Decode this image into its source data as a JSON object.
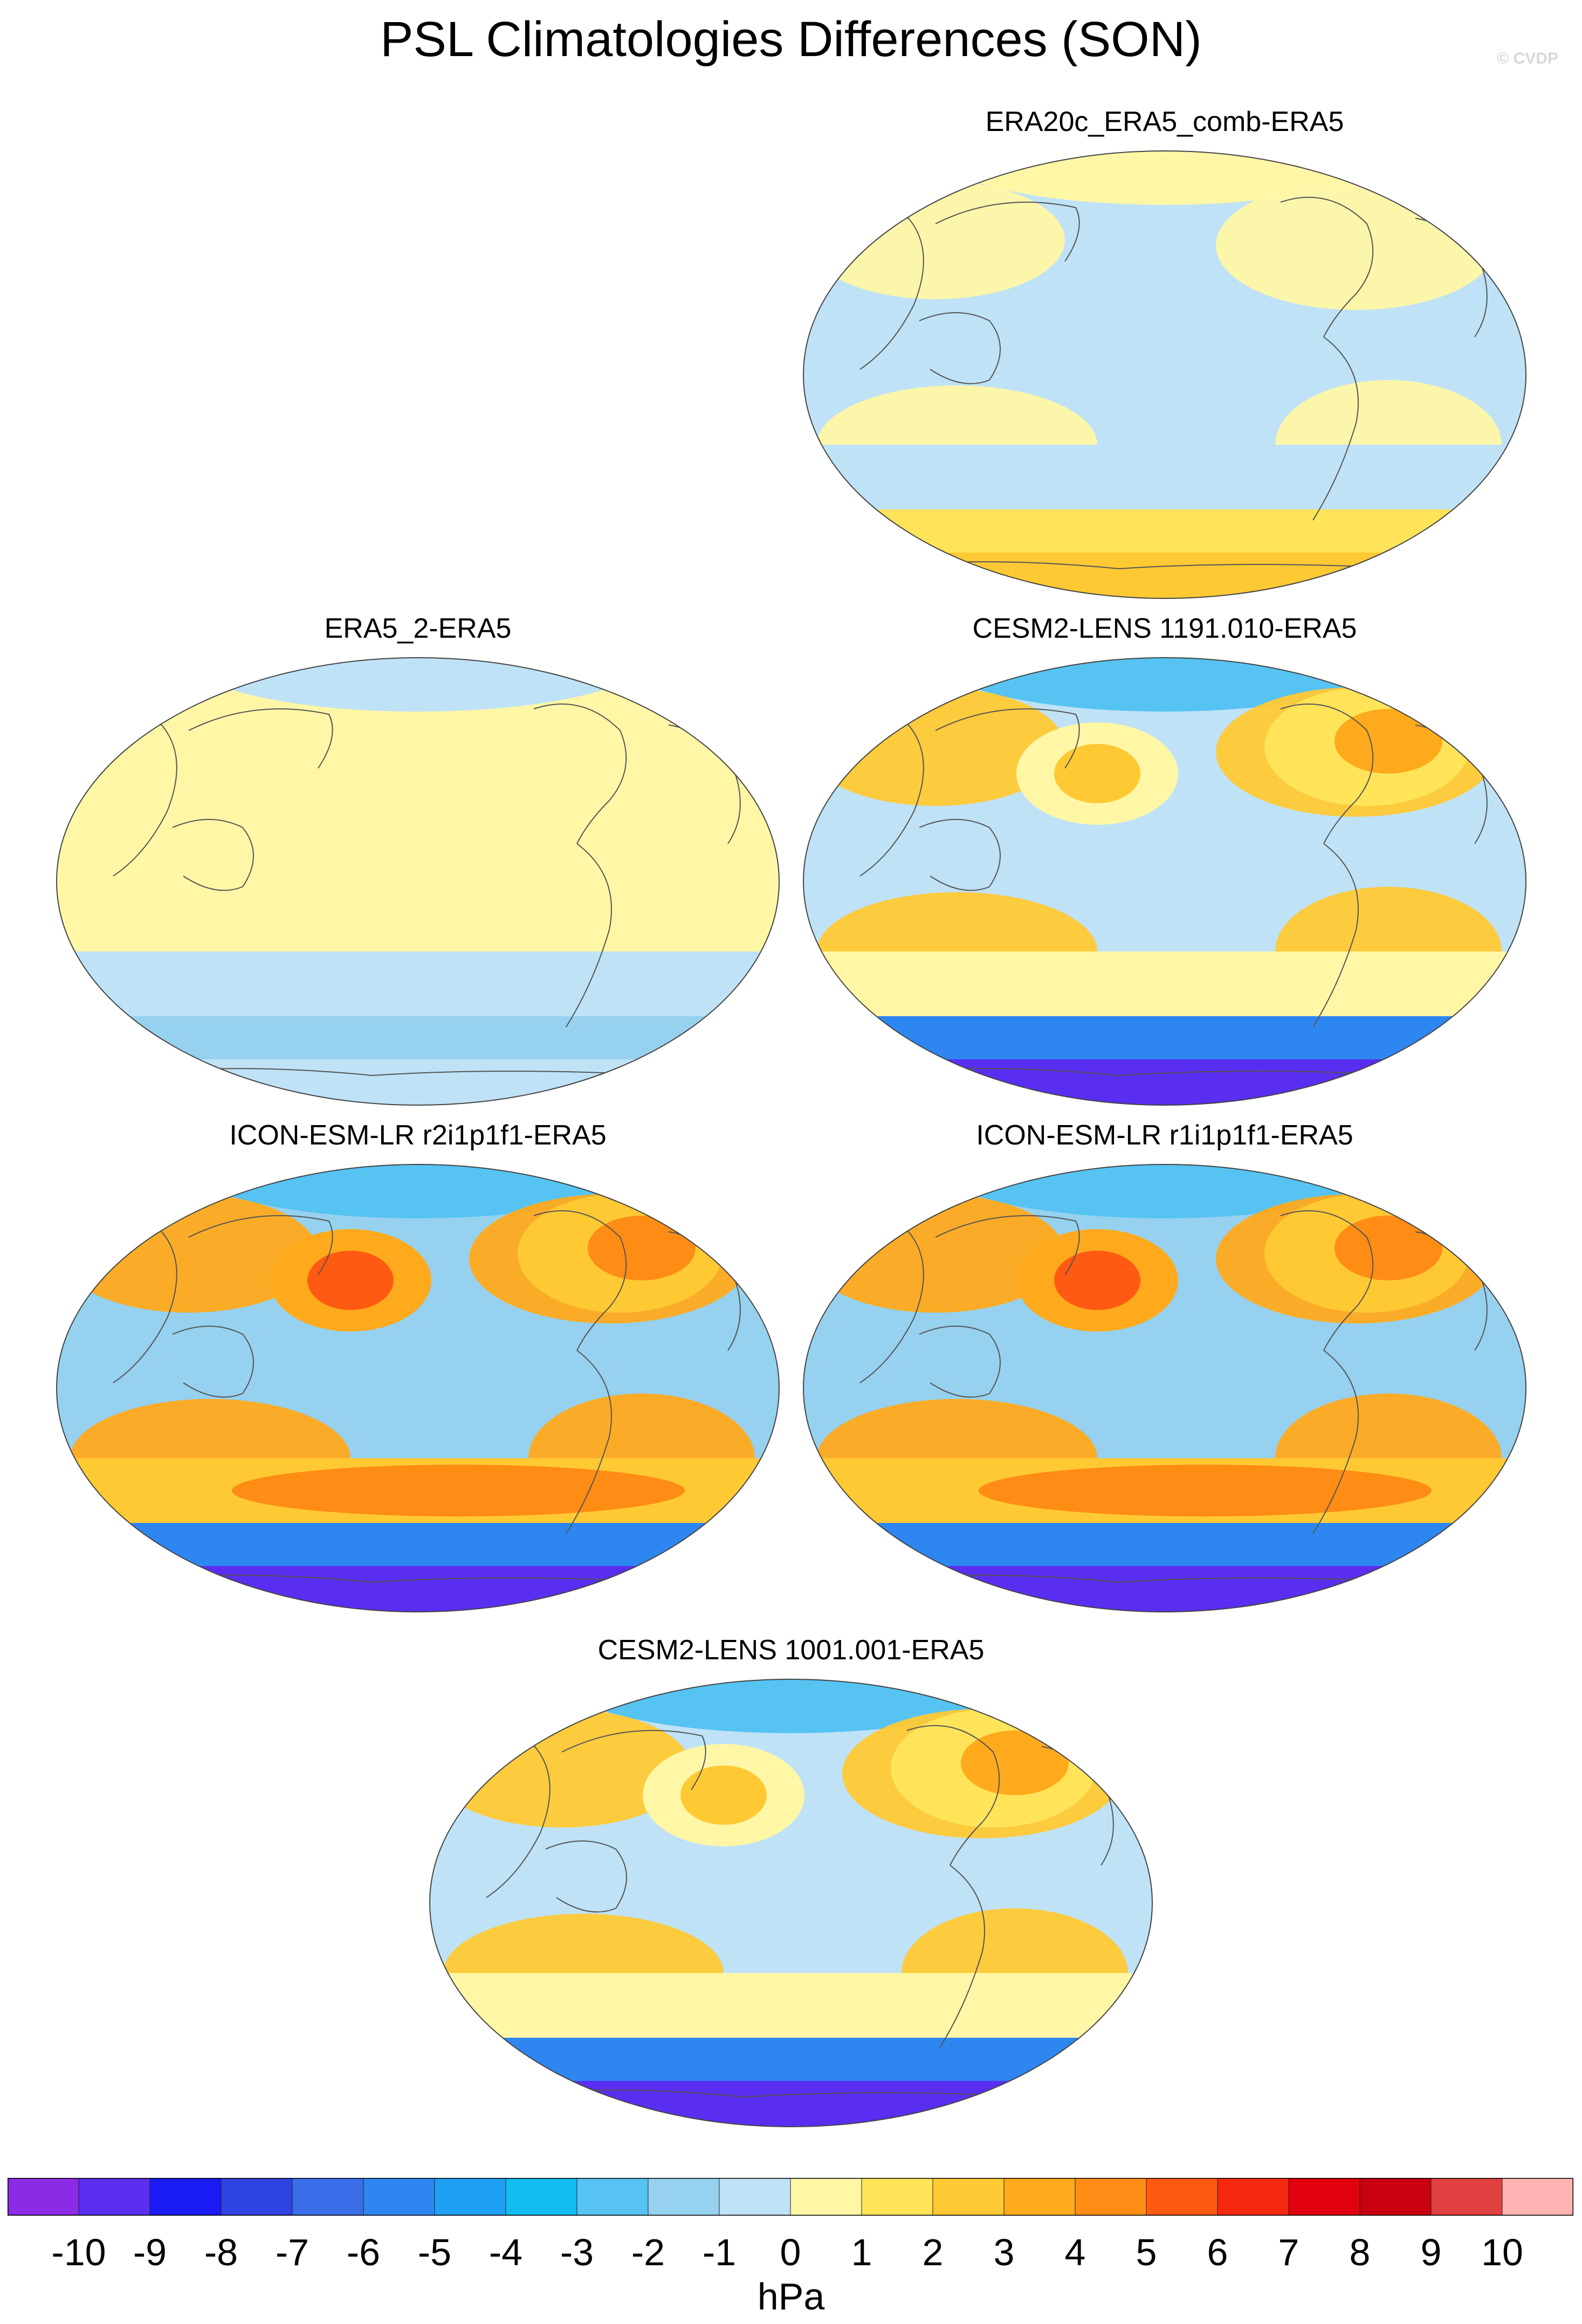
{
  "title": "PSL Climatologies Differences (SON)",
  "credit": "© CVDP",
  "panels": [
    {
      "id": "era20c",
      "label": "ERA20c_ERA5_comb-ERA5",
      "field": {
        "base": -0.5,
        "dipole": [],
        "subtropical_highs": 0.5,
        "midlat_low": -0.5,
        "southern_ring": 1.5,
        "antarctic": 2.5,
        "arctic": 0.5
      }
    },
    {
      "id": "era5_2",
      "label": "ERA5_2-ERA5",
      "field": {
        "base": 0.5,
        "dipole": [],
        "subtropical_highs": 0,
        "midlat_low": -0.5,
        "southern_ring": -1.5,
        "antarctic": -0.5,
        "arctic": -0.5
      }
    },
    {
      "id": "cesm_1191",
      "label": "CESM2-LENS 1191.010-ERA5",
      "field": {
        "base": -0.5,
        "dipole": [
          2.5,
          3.5
        ],
        "subtropical_highs": 2.5,
        "midlat_low": 0.5,
        "southern_ring": -6,
        "antarctic": -10,
        "arctic": -3
      }
    },
    {
      "id": "icon_r2",
      "label": "ICON-ESM-LR r2i1p1f1-ERA5",
      "field": {
        "base": -2,
        "dipole": [
          5.5,
          4.5
        ],
        "subtropical_highs": 3,
        "midlat_low": 4.5,
        "southern_ring": -6,
        "antarctic": -10,
        "arctic": -3
      }
    },
    {
      "id": "icon_r1",
      "label": "ICON-ESM-LR r1i1p1f1-ERA5",
      "field": {
        "base": -2,
        "dipole": [
          5.5,
          4.5
        ],
        "subtropical_highs": 3,
        "midlat_low": 4.5,
        "southern_ring": -6,
        "antarctic": -10,
        "arctic": -3
      }
    },
    {
      "id": "cesm_1001",
      "label": "CESM2-LENS 1001.001-ERA5",
      "field": {
        "base": -0.5,
        "dipole": [
          2.5,
          3.5
        ],
        "subtropical_highs": 2.5,
        "midlat_low": 0.5,
        "southern_ring": -6,
        "antarctic": -10,
        "arctic": -3
      }
    }
  ],
  "colorbar": {
    "units": "hPa",
    "labels": [
      "-10",
      "-9",
      "-8",
      "-7",
      "-6",
      "-5",
      "-4",
      "-3",
      "-2",
      "-1",
      "0",
      "1",
      "2",
      "3",
      "4",
      "5",
      "6",
      "7",
      "8",
      "9",
      "10"
    ],
    "colors": [
      "#8c2be6",
      "#5a2ef0",
      "#1a1af5",
      "#2f43e0",
      "#3a6ee8",
      "#2e86f0",
      "#1fa0f5",
      "#12bdf0",
      "#56c3f2",
      "#96d1ef",
      "#bfe2f6",
      "#fff7a6",
      "#ffe45a",
      "#ffc934",
      "#ffaa1c",
      "#ff8c14",
      "#ff5a12",
      "#f52810",
      "#e2000e",
      "#c90010",
      "#e04040",
      "#ffb4b4"
    ]
  }
}
